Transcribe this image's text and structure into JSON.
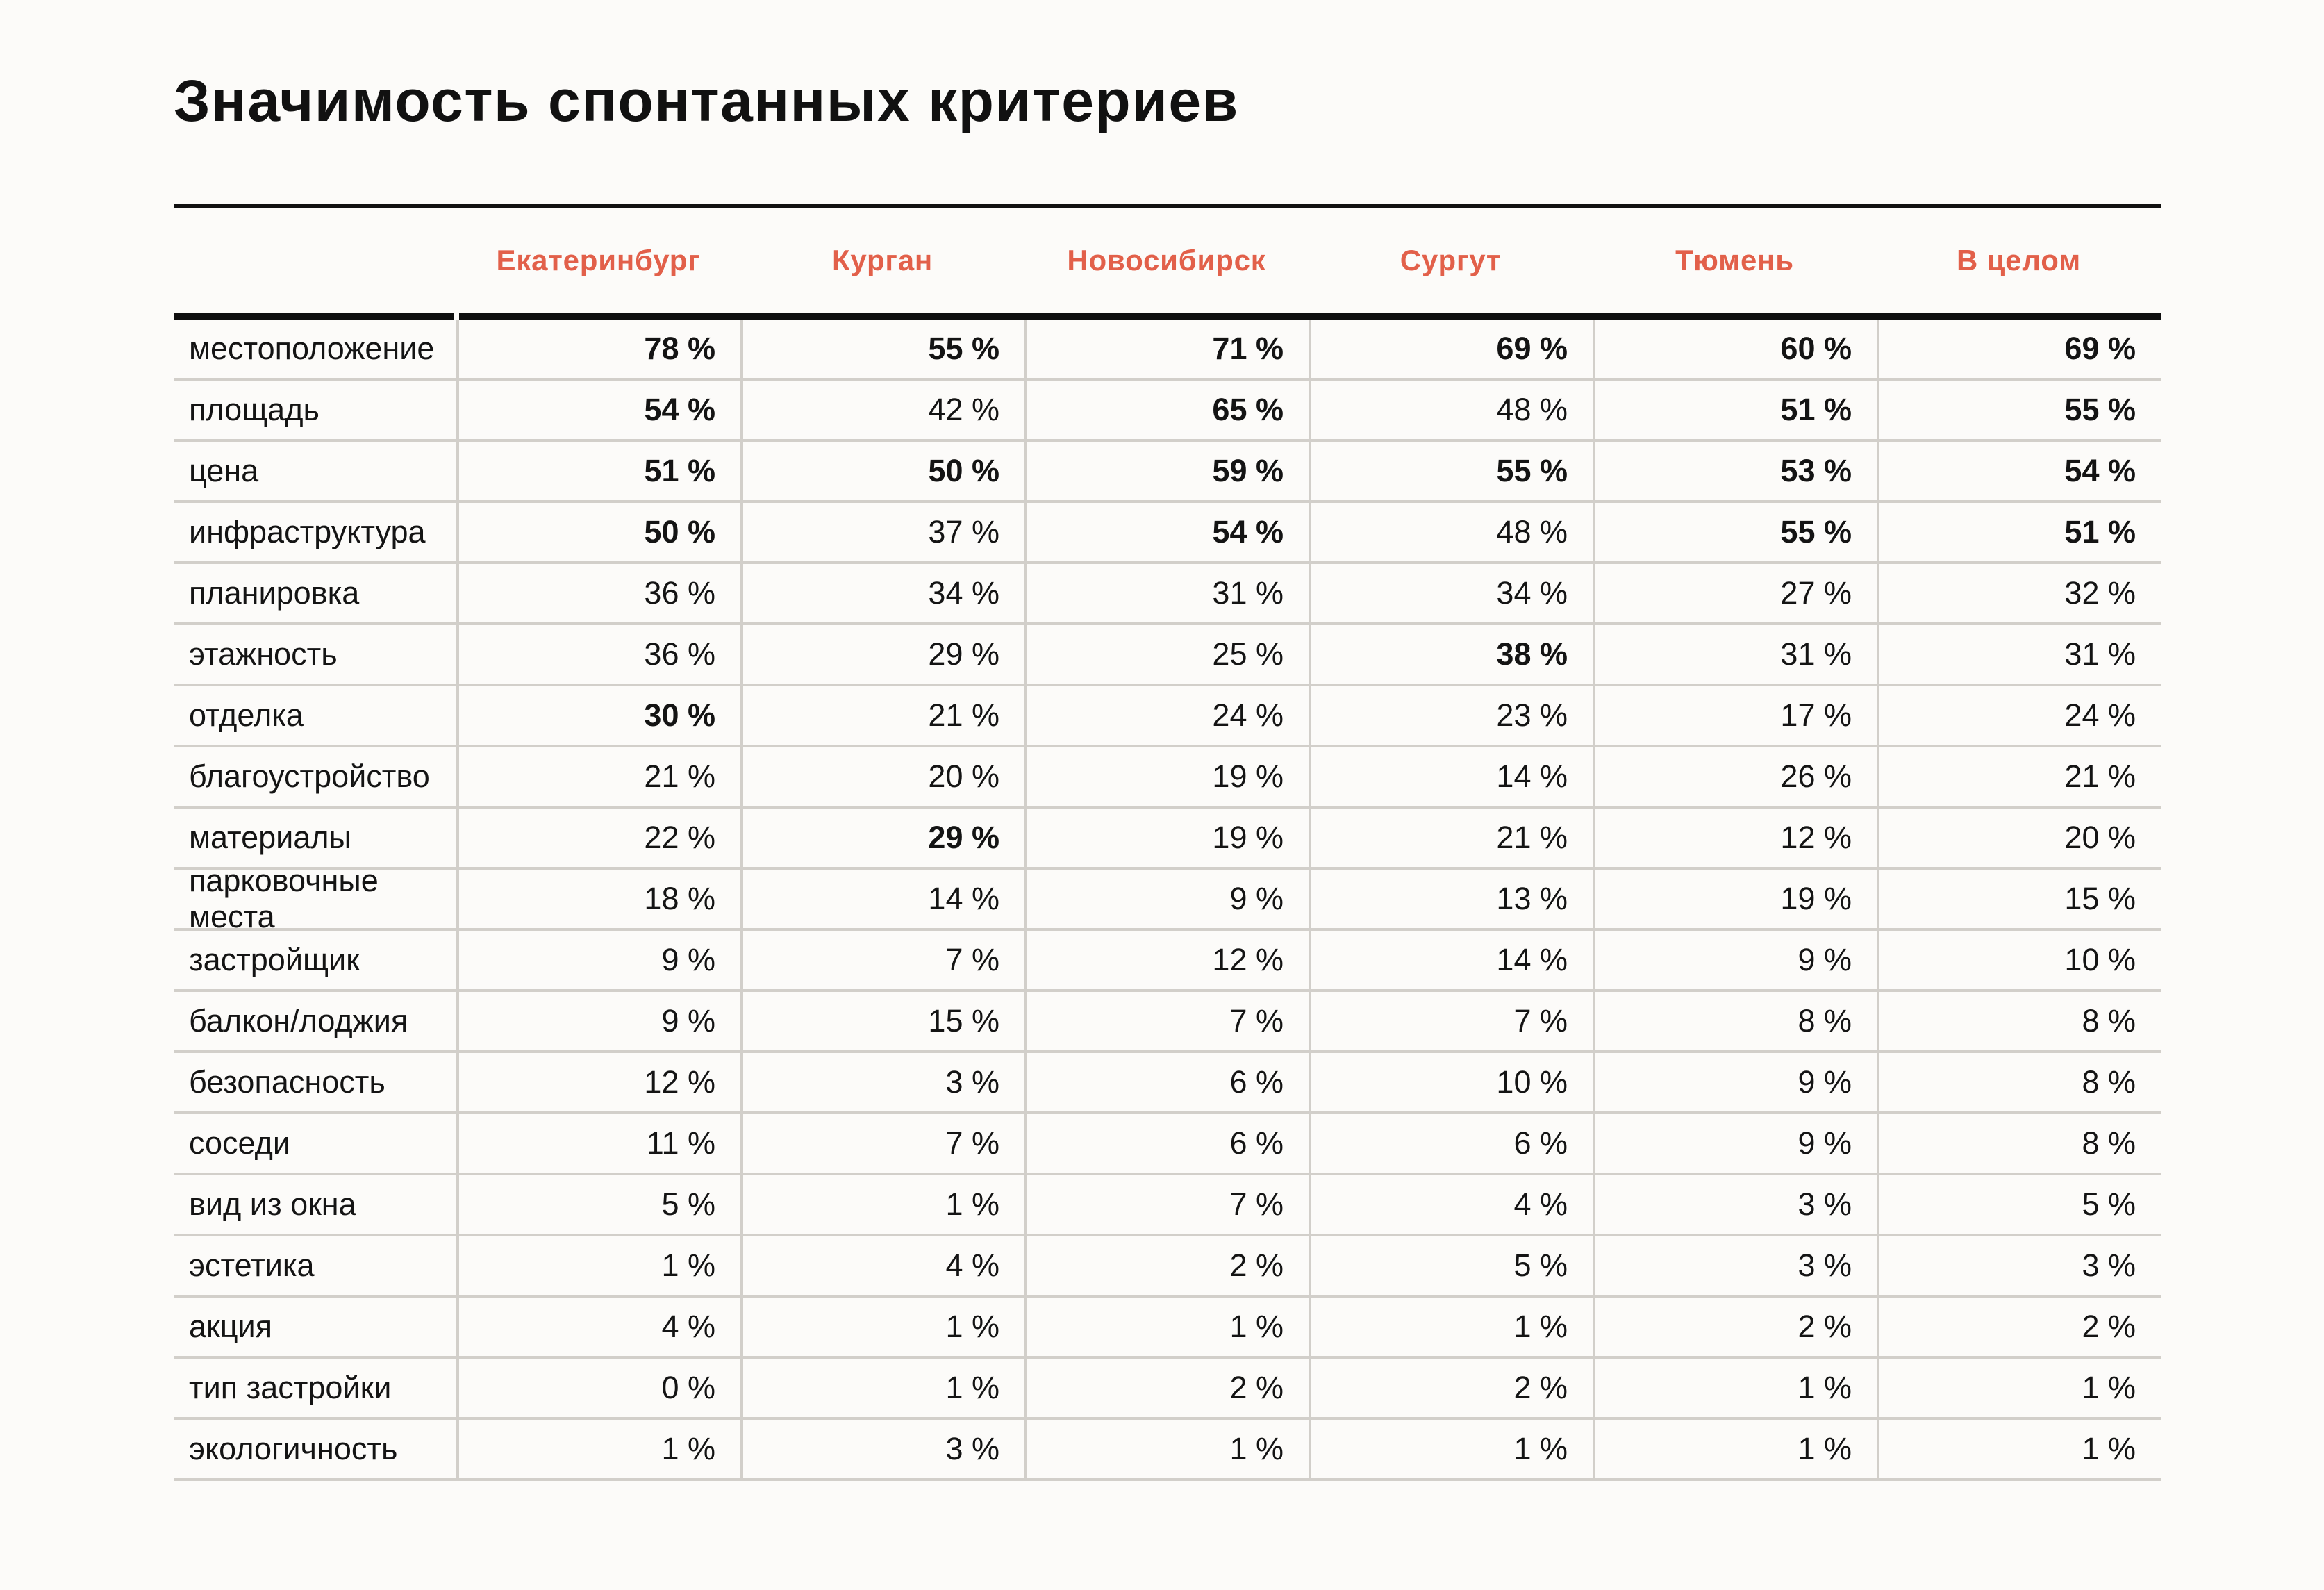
{
  "title": "Значимость спонтанных критериев",
  "columns": [
    "Екатеринбург",
    "Курган",
    "Новосибирск",
    "Сургут",
    "Тюмень",
    "В целом"
  ],
  "rows": [
    {
      "label": "местоположение",
      "values": [
        "78 %",
        "55 %",
        "71 %",
        "69 %",
        "60 %",
        "69 %"
      ],
      "bold": [
        true,
        true,
        true,
        true,
        true,
        true
      ]
    },
    {
      "label": "площадь",
      "values": [
        "54 %",
        "42 %",
        "65 %",
        "48 %",
        "51 %",
        "55 %"
      ],
      "bold": [
        true,
        false,
        true,
        false,
        true,
        true
      ]
    },
    {
      "label": "цена",
      "values": [
        "51 %",
        "50 %",
        "59 %",
        "55 %",
        "53 %",
        "54 %"
      ],
      "bold": [
        true,
        true,
        true,
        true,
        true,
        true
      ]
    },
    {
      "label": "инфраструктура",
      "values": [
        "50 %",
        "37 %",
        "54 %",
        "48 %",
        "55 %",
        "51 %"
      ],
      "bold": [
        true,
        false,
        true,
        false,
        true,
        true
      ]
    },
    {
      "label": "планировка",
      "values": [
        "36 %",
        "34 %",
        "31 %",
        "34 %",
        "27 %",
        "32 %"
      ],
      "bold": [
        false,
        false,
        false,
        false,
        false,
        false
      ]
    },
    {
      "label": "этажность",
      "values": [
        "36 %",
        "29 %",
        "25 %",
        "38 %",
        "31 %",
        "31 %"
      ],
      "bold": [
        false,
        false,
        false,
        true,
        false,
        false
      ]
    },
    {
      "label": "отделка",
      "values": [
        "30 %",
        "21 %",
        "24 %",
        "23 %",
        "17 %",
        "24 %"
      ],
      "bold": [
        true,
        false,
        false,
        false,
        false,
        false
      ]
    },
    {
      "label": "благоустройство",
      "values": [
        "21 %",
        "20 %",
        "19 %",
        "14 %",
        "26 %",
        "21 %"
      ],
      "bold": [
        false,
        false,
        false,
        false,
        false,
        false
      ]
    },
    {
      "label": "материалы",
      "values": [
        "22 %",
        "29 %",
        "19 %",
        "21 %",
        "12 %",
        "20 %"
      ],
      "bold": [
        false,
        true,
        false,
        false,
        false,
        false
      ]
    },
    {
      "label": "парковочные места",
      "values": [
        "18 %",
        "14 %",
        "9 %",
        "13 %",
        "19 %",
        "15 %"
      ],
      "bold": [
        false,
        false,
        false,
        false,
        false,
        false
      ]
    },
    {
      "label": "застройщик",
      "values": [
        "9 %",
        "7 %",
        "12 %",
        "14 %",
        "9 %",
        "10 %"
      ],
      "bold": [
        false,
        false,
        false,
        false,
        false,
        false
      ]
    },
    {
      "label": "балкон/лоджия",
      "values": [
        "9 %",
        "15 %",
        "7 %",
        "7 %",
        "8 %",
        "8 %"
      ],
      "bold": [
        false,
        false,
        false,
        false,
        false,
        false
      ]
    },
    {
      "label": "безопасность",
      "values": [
        "12 %",
        "3 %",
        "6 %",
        "10 %",
        "9 %",
        "8 %"
      ],
      "bold": [
        false,
        false,
        false,
        false,
        false,
        false
      ]
    },
    {
      "label": "соседи",
      "values": [
        "11 %",
        "7 %",
        "6 %",
        "6 %",
        "9 %",
        "8 %"
      ],
      "bold": [
        false,
        false,
        false,
        false,
        false,
        false
      ]
    },
    {
      "label": "вид из окна",
      "values": [
        "5 %",
        "1 %",
        "7 %",
        "4 %",
        "3 %",
        "5 %"
      ],
      "bold": [
        false,
        false,
        false,
        false,
        false,
        false
      ]
    },
    {
      "label": "эстетика",
      "values": [
        "1 %",
        "4 %",
        "2 %",
        "5 %",
        "3 %",
        "3 %"
      ],
      "bold": [
        false,
        false,
        false,
        false,
        false,
        false
      ]
    },
    {
      "label": "акция",
      "values": [
        "4 %",
        "1 %",
        "1 %",
        "1 %",
        "2 %",
        "2 %"
      ],
      "bold": [
        false,
        false,
        false,
        false,
        false,
        false
      ]
    },
    {
      "label": "тип застройки",
      "values": [
        "0 %",
        "1 %",
        "2 %",
        "2 %",
        "1 %",
        "1 %"
      ],
      "bold": [
        false,
        false,
        false,
        false,
        false,
        false
      ]
    },
    {
      "label": "экологичность",
      "values": [
        "1 %",
        "3 %",
        "1 %",
        "1 %",
        "1 %",
        "1 %"
      ],
      "bold": [
        false,
        false,
        false,
        false,
        false,
        false
      ]
    }
  ],
  "colors": {
    "accent_header": "#E2604A",
    "text": "#141414",
    "heavy_rule": "#0F0F0F",
    "grid_line": "#D2CFCA",
    "background": "#FCFBF9"
  },
  "chart_data": {
    "type": "table",
    "title": "Значимость спонтанных критериев",
    "unit": "%",
    "columns": [
      "Екатеринбург",
      "Курган",
      "Новосибирск",
      "Сургут",
      "Тюмень",
      "В целом"
    ],
    "row_labels": [
      "местоположение",
      "площадь",
      "цена",
      "инфраструктура",
      "планировка",
      "этажность",
      "отделка",
      "благоустройство",
      "материалы",
      "парковочные места",
      "застройщик",
      "балкон/лоджия",
      "безопасность",
      "соседи",
      "вид из окна",
      "эстетика",
      "акция",
      "тип застройки",
      "экологичность"
    ],
    "values_percent": [
      [
        78,
        55,
        71,
        69,
        60,
        69
      ],
      [
        54,
        42,
        65,
        48,
        51,
        55
      ],
      [
        51,
        50,
        59,
        55,
        53,
        54
      ],
      [
        50,
        37,
        54,
        48,
        55,
        51
      ],
      [
        36,
        34,
        31,
        34,
        27,
        32
      ],
      [
        36,
        29,
        25,
        38,
        31,
        31
      ],
      [
        30,
        21,
        24,
        23,
        17,
        24
      ],
      [
        21,
        20,
        19,
        14,
        26,
        21
      ],
      [
        22,
        29,
        19,
        21,
        12,
        20
      ],
      [
        18,
        14,
        9,
        13,
        19,
        15
      ],
      [
        9,
        7,
        12,
        14,
        9,
        10
      ],
      [
        9,
        15,
        7,
        7,
        8,
        8
      ],
      [
        12,
        3,
        6,
        10,
        9,
        8
      ],
      [
        11,
        7,
        6,
        6,
        9,
        8
      ],
      [
        5,
        1,
        7,
        4,
        3,
        5
      ],
      [
        1,
        4,
        2,
        5,
        3,
        3
      ],
      [
        4,
        1,
        1,
        1,
        2,
        2
      ],
      [
        0,
        1,
        2,
        2,
        1,
        1
      ],
      [
        1,
        3,
        1,
        1,
        1,
        1
      ]
    ],
    "bold_cells_note": "bold flags per row are stored in rows[].bold; bold marks emphasized (highest) values"
  }
}
